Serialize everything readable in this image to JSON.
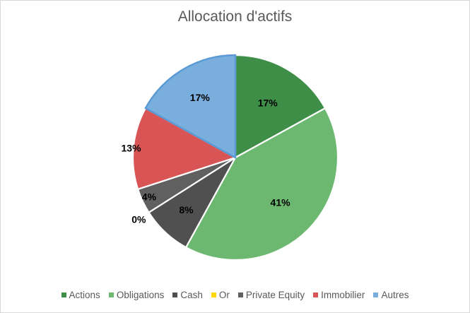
{
  "chart_data": {
    "type": "pie",
    "title": "Allocation d'actifs",
    "categories": [
      "Actions",
      "Obligations",
      "Cash",
      "Or",
      "Private Equity",
      "Immobilier",
      "Autres"
    ],
    "values": [
      17,
      41,
      8,
      0,
      4,
      13,
      17
    ],
    "data_labels": [
      "17%",
      "41%",
      "8%",
      "0%",
      "4%",
      "13%",
      "17%"
    ],
    "colors": [
      "#3e8e47",
      "#6db870",
      "#505050",
      "#ffd700",
      "#606060",
      "#d95455",
      "#7aaedd"
    ],
    "legend_position": "bottom",
    "highlighted_slice": "Autres"
  }
}
